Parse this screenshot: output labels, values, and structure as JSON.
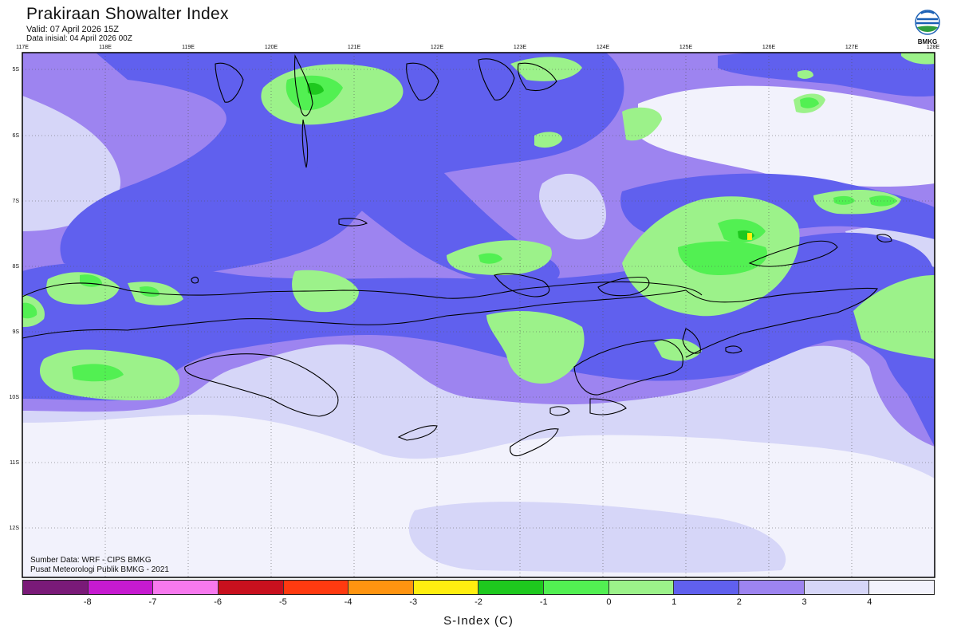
{
  "header": {
    "title": "Prakiraan Showalter Index",
    "valid": "Valid: 07 April 2026 15Z",
    "init": "Data inisial: 04 April 2026 00Z"
  },
  "logo": {
    "text": "BMKG",
    "icon": "bmkg-logo-icon"
  },
  "map": {
    "lon_labels": [
      "117E",
      "118E",
      "119E",
      "120E",
      "121E",
      "122E",
      "123E",
      "124E",
      "125E",
      "126E",
      "127E",
      "128E"
    ],
    "lat_labels": [
      "5S",
      "6S",
      "7S",
      "8S",
      "9S",
      "10S",
      "11S",
      "12S"
    ]
  },
  "credits": {
    "source": "Sumber Data: WRF - CIPS BMKG",
    "org": "Pusat Meteorologi Publik BMKG - 2021"
  },
  "colorbar": {
    "title": "S-Index (C)",
    "colors": [
      "#7a1a78",
      "#c61ad0",
      "#f779ee",
      "#c8101e",
      "#ff3a10",
      "#ff9410",
      "#ffee10",
      "#1ec81e",
      "#52f052",
      "#9cf28a",
      "#6060ee",
      "#9d84f0",
      "#d6d6f8",
      "#f2f2fc"
    ],
    "ticks": [
      "-8",
      "-7",
      "-6",
      "-5",
      "-4",
      "-3",
      "-2",
      "-1",
      "0",
      "1",
      "2",
      "3",
      "4"
    ]
  }
}
